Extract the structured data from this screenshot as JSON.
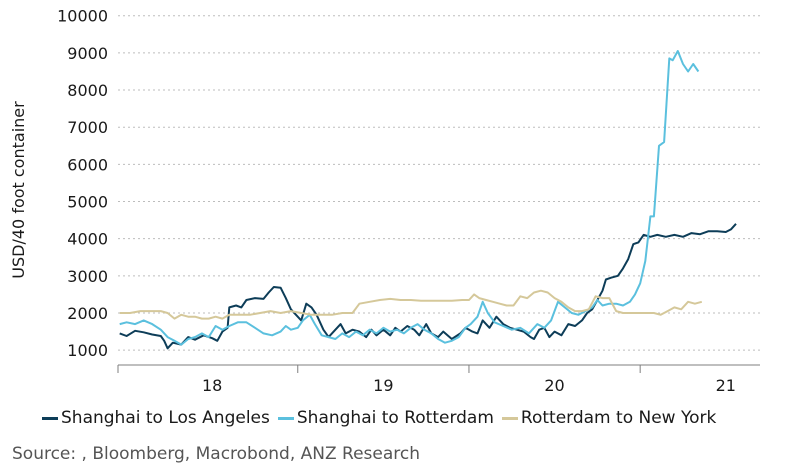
{
  "chart_data": {
    "type": "line",
    "title": "",
    "xlabel": "",
    "ylabel": "USD/40 foot container",
    "ylim": [
      600,
      10100
    ],
    "xlim": [
      2017.45,
      2021.2
    ],
    "yticks": [
      1000,
      2000,
      3000,
      4000,
      5000,
      6000,
      7000,
      8000,
      9000,
      10000
    ],
    "xticks": [
      {
        "label": "18",
        "x": 2018.0
      },
      {
        "label": "19",
        "x": 2019.0
      },
      {
        "label": "20",
        "x": 2020.0
      },
      {
        "label": "21",
        "x": 2021.0
      }
    ],
    "xtick_marks": [
      2017.45,
      2018.5,
      2019.5,
      2020.5
    ],
    "grid": "horizontal dotted",
    "series": [
      {
        "name": "Shanghai to Los Angeles",
        "color": "#0d3d58",
        "points": [
          [
            2017.46,
            1450
          ],
          [
            2017.5,
            1380
          ],
          [
            2017.55,
            1520
          ],
          [
            2017.6,
            1480
          ],
          [
            2017.65,
            1420
          ],
          [
            2017.7,
            1380
          ],
          [
            2017.72,
            1250
          ],
          [
            2017.74,
            1050
          ],
          [
            2017.77,
            1200
          ],
          [
            2017.82,
            1150
          ],
          [
            2017.86,
            1350
          ],
          [
            2017.9,
            1280
          ],
          [
            2017.95,
            1400
          ],
          [
            2018.0,
            1320
          ],
          [
            2018.03,
            1250
          ],
          [
            2018.06,
            1500
          ],
          [
            2018.09,
            1600
          ],
          [
            2018.1,
            2150
          ],
          [
            2018.14,
            2200
          ],
          [
            2018.17,
            2150
          ],
          [
            2018.2,
            2350
          ],
          [
            2018.25,
            2400
          ],
          [
            2018.3,
            2380
          ],
          [
            2018.33,
            2550
          ],
          [
            2018.36,
            2700
          ],
          [
            2018.4,
            2680
          ],
          [
            2018.43,
            2400
          ],
          [
            2018.46,
            2100
          ],
          [
            2018.49,
            1950
          ],
          [
            2018.52,
            1800
          ],
          [
            2018.55,
            2250
          ],
          [
            2018.58,
            2150
          ],
          [
            2018.61,
            1950
          ],
          [
            2018.65,
            1550
          ],
          [
            2018.68,
            1350
          ],
          [
            2018.72,
            1550
          ],
          [
            2018.75,
            1700
          ],
          [
            2018.78,
            1450
          ],
          [
            2018.82,
            1550
          ],
          [
            2018.86,
            1500
          ],
          [
            2018.9,
            1350
          ],
          [
            2018.93,
            1550
          ],
          [
            2018.96,
            1400
          ],
          [
            2019.0,
            1550
          ],
          [
            2019.04,
            1400
          ],
          [
            2019.07,
            1600
          ],
          [
            2019.1,
            1500
          ],
          [
            2019.14,
            1650
          ],
          [
            2019.18,
            1550
          ],
          [
            2019.21,
            1400
          ],
          [
            2019.25,
            1700
          ],
          [
            2019.28,
            1450
          ],
          [
            2019.32,
            1350
          ],
          [
            2019.35,
            1500
          ],
          [
            2019.4,
            1300
          ],
          [
            2019.45,
            1450
          ],
          [
            2019.48,
            1600
          ],
          [
            2019.52,
            1500
          ],
          [
            2019.55,
            1450
          ],
          [
            2019.58,
            1800
          ],
          [
            2019.62,
            1600
          ],
          [
            2019.66,
            1900
          ],
          [
            2019.7,
            1700
          ],
          [
            2019.74,
            1600
          ],
          [
            2019.78,
            1550
          ],
          [
            2019.82,
            1500
          ],
          [
            2019.86,
            1350
          ],
          [
            2019.88,
            1300
          ],
          [
            2019.91,
            1550
          ],
          [
            2019.94,
            1600
          ],
          [
            2019.97,
            1350
          ],
          [
            2020.0,
            1500
          ],
          [
            2020.04,
            1400
          ],
          [
            2020.08,
            1700
          ],
          [
            2020.12,
            1650
          ],
          [
            2020.16,
            1800
          ],
          [
            2020.19,
            2000
          ],
          [
            2020.22,
            2100
          ],
          [
            2020.25,
            2350
          ],
          [
            2020.28,
            2600
          ],
          [
            2020.3,
            2900
          ],
          [
            2020.33,
            2950
          ],
          [
            2020.37,
            3000
          ],
          [
            2020.4,
            3200
          ],
          [
            2020.43,
            3450
          ],
          [
            2020.46,
            3850
          ],
          [
            2020.49,
            3900
          ],
          [
            2020.52,
            4100
          ],
          [
            2020.56,
            4050
          ],
          [
            2020.6,
            4100
          ],
          [
            2020.65,
            4050
          ],
          [
            2020.7,
            4100
          ],
          [
            2020.75,
            4050
          ],
          [
            2020.8,
            4150
          ],
          [
            2020.85,
            4120
          ],
          [
            2020.9,
            4200
          ],
          [
            2020.95,
            4200
          ],
          [
            2021.0,
            4180
          ],
          [
            2021.03,
            4250
          ],
          [
            2021.06,
            4400
          ]
        ]
      },
      {
        "name": "Shanghai to Rotterdam",
        "color": "#5bc0de",
        "points": [
          [
            2017.46,
            1700
          ],
          [
            2017.5,
            1750
          ],
          [
            2017.55,
            1700
          ],
          [
            2017.6,
            1800
          ],
          [
            2017.65,
            1700
          ],
          [
            2017.7,
            1550
          ],
          [
            2017.74,
            1350
          ],
          [
            2017.78,
            1250
          ],
          [
            2017.82,
            1150
          ],
          [
            2017.86,
            1300
          ],
          [
            2017.9,
            1350
          ],
          [
            2017.94,
            1450
          ],
          [
            2017.98,
            1350
          ],
          [
            2018.02,
            1650
          ],
          [
            2018.06,
            1550
          ],
          [
            2018.1,
            1650
          ],
          [
            2018.15,
            1750
          ],
          [
            2018.2,
            1750
          ],
          [
            2018.25,
            1600
          ],
          [
            2018.3,
            1450
          ],
          [
            2018.35,
            1400
          ],
          [
            2018.4,
            1500
          ],
          [
            2018.43,
            1650
          ],
          [
            2018.46,
            1550
          ],
          [
            2018.5,
            1600
          ],
          [
            2018.53,
            1800
          ],
          [
            2018.57,
            1950
          ],
          [
            2018.6,
            1700
          ],
          [
            2018.64,
            1400
          ],
          [
            2018.68,
            1350
          ],
          [
            2018.72,
            1300
          ],
          [
            2018.76,
            1450
          ],
          [
            2018.8,
            1350
          ],
          [
            2018.84,
            1500
          ],
          [
            2018.88,
            1400
          ],
          [
            2018.92,
            1550
          ],
          [
            2018.96,
            1450
          ],
          [
            2019.0,
            1600
          ],
          [
            2019.04,
            1500
          ],
          [
            2019.08,
            1550
          ],
          [
            2019.12,
            1450
          ],
          [
            2019.16,
            1600
          ],
          [
            2019.2,
            1700
          ],
          [
            2019.24,
            1550
          ],
          [
            2019.28,
            1450
          ],
          [
            2019.32,
            1300
          ],
          [
            2019.36,
            1200
          ],
          [
            2019.4,
            1250
          ],
          [
            2019.44,
            1350
          ],
          [
            2019.48,
            1600
          ],
          [
            2019.51,
            1700
          ],
          [
            2019.55,
            1900
          ],
          [
            2019.58,
            2300
          ],
          [
            2019.61,
            2000
          ],
          [
            2019.65,
            1750
          ],
          [
            2019.7,
            1650
          ],
          [
            2019.75,
            1550
          ],
          [
            2019.8,
            1600
          ],
          [
            2019.85,
            1450
          ],
          [
            2019.9,
            1700
          ],
          [
            2019.94,
            1600
          ],
          [
            2019.98,
            1800
          ],
          [
            2020.02,
            2300
          ],
          [
            2020.06,
            2150
          ],
          [
            2020.1,
            2000
          ],
          [
            2020.14,
            1950
          ],
          [
            2020.18,
            2050
          ],
          [
            2020.22,
            2150
          ],
          [
            2020.25,
            2350
          ],
          [
            2020.28,
            2200
          ],
          [
            2020.32,
            2250
          ],
          [
            2020.36,
            2250
          ],
          [
            2020.4,
            2200
          ],
          [
            2020.44,
            2300
          ],
          [
            2020.47,
            2500
          ],
          [
            2020.5,
            2800
          ],
          [
            2020.53,
            3400
          ],
          [
            2020.56,
            4600
          ],
          [
            2020.58,
            4600
          ],
          [
            2020.61,
            6500
          ],
          [
            2020.64,
            6600
          ],
          [
            2020.67,
            8850
          ],
          [
            2020.69,
            8800
          ],
          [
            2020.72,
            9050
          ],
          [
            2020.75,
            8700
          ],
          [
            2020.78,
            8500
          ],
          [
            2020.81,
            8700
          ],
          [
            2020.84,
            8500
          ]
        ]
      },
      {
        "name": "Rotterdam to New York",
        "color": "#d5c89a",
        "points": [
          [
            2017.46,
            2000
          ],
          [
            2017.52,
            2000
          ],
          [
            2017.58,
            2050
          ],
          [
            2017.64,
            2050
          ],
          [
            2017.7,
            2050
          ],
          [
            2017.74,
            2000
          ],
          [
            2017.78,
            1850
          ],
          [
            2017.82,
            1950
          ],
          [
            2017.86,
            1900
          ],
          [
            2017.9,
            1900
          ],
          [
            2017.94,
            1850
          ],
          [
            2017.98,
            1850
          ],
          [
            2018.02,
            1900
          ],
          [
            2018.06,
            1850
          ],
          [
            2018.1,
            1950
          ],
          [
            2018.16,
            1950
          ],
          [
            2018.22,
            1950
          ],
          [
            2018.28,
            2000
          ],
          [
            2018.34,
            2050
          ],
          [
            2018.4,
            2000
          ],
          [
            2018.46,
            2050
          ],
          [
            2018.52,
            2000
          ],
          [
            2018.58,
            1950
          ],
          [
            2018.64,
            1950
          ],
          [
            2018.7,
            1950
          ],
          [
            2018.76,
            2000
          ],
          [
            2018.82,
            2000
          ],
          [
            2018.86,
            2250
          ],
          [
            2018.92,
            2300
          ],
          [
            2018.98,
            2350
          ],
          [
            2019.04,
            2380
          ],
          [
            2019.1,
            2350
          ],
          [
            2019.16,
            2350
          ],
          [
            2019.22,
            2330
          ],
          [
            2019.28,
            2330
          ],
          [
            2019.34,
            2330
          ],
          [
            2019.4,
            2330
          ],
          [
            2019.46,
            2350
          ],
          [
            2019.5,
            2350
          ],
          [
            2019.53,
            2500
          ],
          [
            2019.56,
            2400
          ],
          [
            2019.6,
            2350
          ],
          [
            2019.64,
            2300
          ],
          [
            2019.68,
            2250
          ],
          [
            2019.72,
            2200
          ],
          [
            2019.76,
            2200
          ],
          [
            2019.8,
            2450
          ],
          [
            2019.84,
            2400
          ],
          [
            2019.88,
            2550
          ],
          [
            2019.92,
            2600
          ],
          [
            2019.96,
            2550
          ],
          [
            2020.0,
            2400
          ],
          [
            2020.04,
            2300
          ],
          [
            2020.08,
            2150
          ],
          [
            2020.12,
            2050
          ],
          [
            2020.16,
            2050
          ],
          [
            2020.2,
            2100
          ],
          [
            2020.24,
            2450
          ],
          [
            2020.28,
            2400
          ],
          [
            2020.32,
            2400
          ],
          [
            2020.36,
            2050
          ],
          [
            2020.4,
            2000
          ],
          [
            2020.46,
            2000
          ],
          [
            2020.52,
            2000
          ],
          [
            2020.58,
            2000
          ],
          [
            2020.62,
            1950
          ],
          [
            2020.66,
            2050
          ],
          [
            2020.7,
            2150
          ],
          [
            2020.74,
            2100
          ],
          [
            2020.78,
            2300
          ],
          [
            2020.82,
            2250
          ],
          [
            2020.86,
            2300
          ]
        ]
      }
    ]
  },
  "legend": {
    "items": [
      {
        "label": "Shanghai to Los Angeles",
        "color": "#0d3d58"
      },
      {
        "label": "Shanghai to Rotterdam",
        "color": "#5bc0de"
      },
      {
        "label": "Rotterdam to New York",
        "color": "#d5c89a"
      }
    ]
  },
  "source": "Source: , Bloomberg, Macrobond, ANZ Research"
}
